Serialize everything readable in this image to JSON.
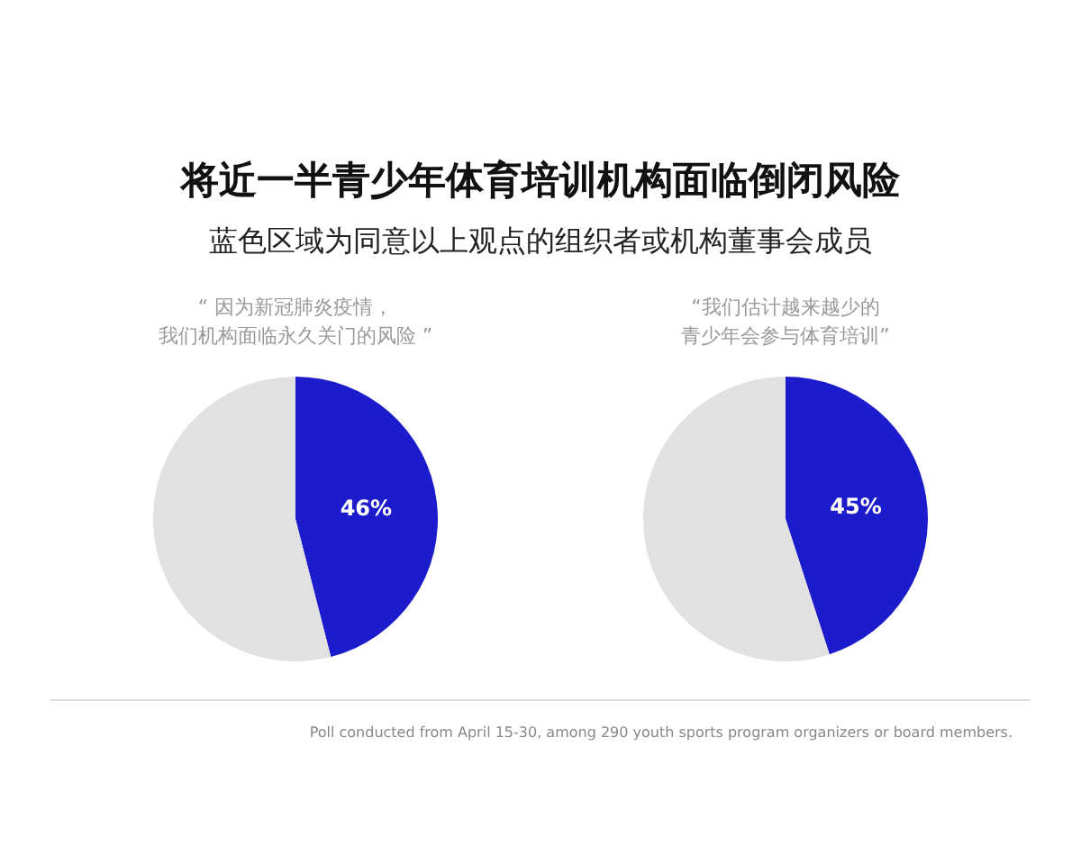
{
  "chart_data": [
    {
      "type": "pie",
      "title": "将近一半青少年体育培训机构面临倒闭风险",
      "subtitle": "蓝色区域为同意以上观点的组织者或机构董事会成员",
      "annotations": [
        "“ 因为新冠肺炎疫情，",
        "我们机构面临永久关门的风险 ”"
      ],
      "categories": [
        null,
        null
      ],
      "values": [
        46,
        54
      ],
      "colors": [
        "#1c1ccc",
        "#e1e1e1"
      ],
      "value_labels": [
        "46%",
        null
      ]
    },
    {
      "type": "pie",
      "annotations": [
        "“我们估计越来越少的",
        "青少年会参与体育培训”",
        "Poll conducted from April 15-30, among 290 youth sports program organizers or board members."
      ],
      "categories": [
        null,
        null
      ],
      "values": [
        45,
        55
      ],
      "colors": [
        "#1c1ccc",
        "#e1e1e1"
      ],
      "value_labels": [
        "45%",
        null
      ]
    }
  ]
}
